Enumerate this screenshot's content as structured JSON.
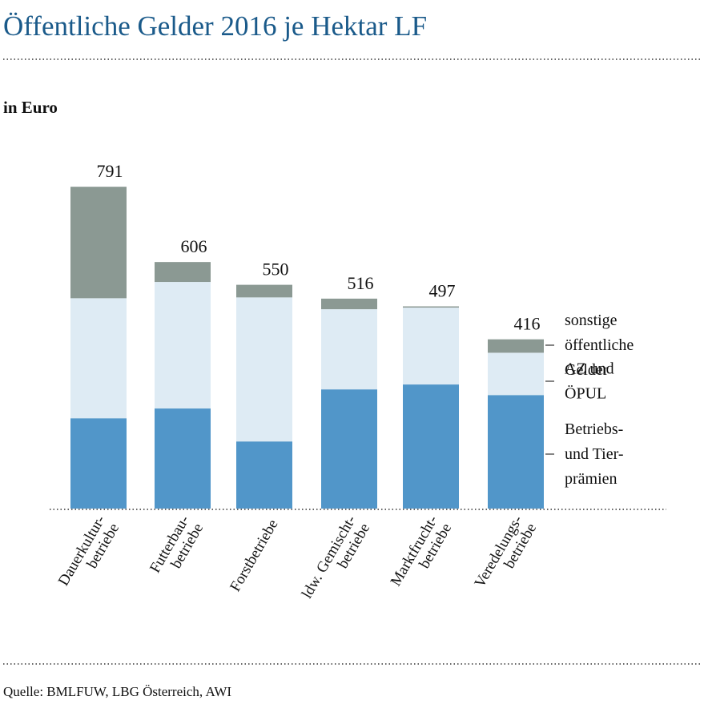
{
  "chart_data": {
    "type": "stacked_bar",
    "title": "Öffentliche Gelder 2016 je Hektar LF",
    "unit_label": "in Euro",
    "source": "Quelle: BMLFUW, LBG Österreich, AWI",
    "categories": [
      [
        "Dauerkultur-",
        "betriebe"
      ],
      [
        "Futterbau-",
        "betriebe"
      ],
      [
        "Forstbetriebe"
      ],
      [
        "ldw. Gemischt-",
        "betriebe"
      ],
      [
        "Marktfrucht-",
        "betriebe"
      ],
      [
        "Veredelungs-",
        "betriebe"
      ]
    ],
    "totals": [
      791,
      606,
      550,
      516,
      497,
      416
    ],
    "series": [
      {
        "name": [
          "Betriebs-",
          "und Tier-",
          "prämien"
        ],
        "color": "#5196c9",
        "values": [
          222,
          246,
          165,
          293,
          305,
          279
        ]
      },
      {
        "name": [
          "AZ und",
          "ÖPUL"
        ],
        "color": "#deebf4",
        "values": [
          295,
          311,
          354,
          197,
          189,
          104
        ]
      },
      {
        "name": [
          "sonstige",
          "öffentliche",
          "Gelder"
        ],
        "color": "#8b9993",
        "values": [
          274,
          49,
          31,
          26,
          3,
          33
        ]
      }
    ]
  }
}
